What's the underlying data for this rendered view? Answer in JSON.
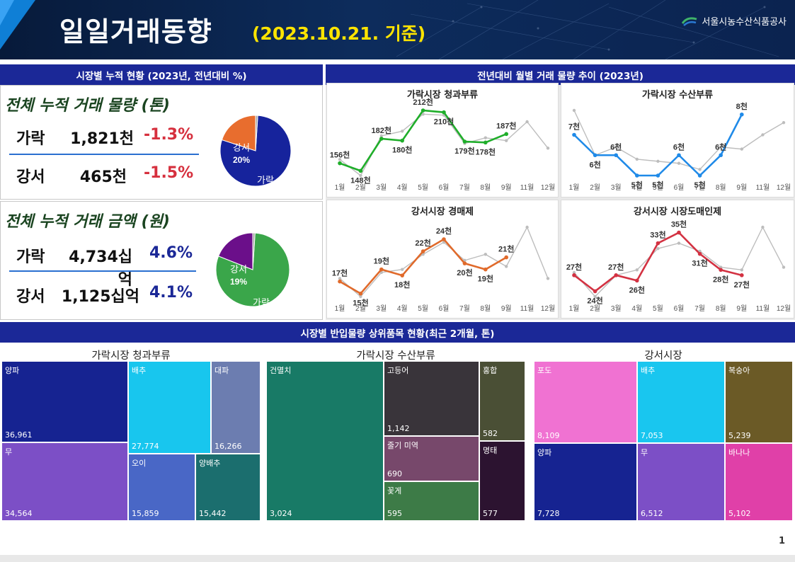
{
  "header": {
    "title": "일일거래동향",
    "date": "(2023.10.21. 기준)",
    "org": "서울시농수산식품공사"
  },
  "left": {
    "section_title": "시장별 누적 현황 (2023년, 전년대비 %)",
    "volume": {
      "title": "전체 누적 거래 물량 (톤)",
      "rows": [
        {
          "label": "가락",
          "value": "1,821천",
          "pct": "-1.3%"
        },
        {
          "label": "강서",
          "value": "465천",
          "pct": "-1.5%"
        }
      ],
      "pie": [
        {
          "label": "가락",
          "pct": "79%",
          "share": 79,
          "color": "#16239c"
        },
        {
          "label": "강서",
          "pct": "20%",
          "share": 20,
          "color": "#e86d2e"
        }
      ]
    },
    "amount": {
      "title": "전체 누적 거래 금액 (원)",
      "rows": [
        {
          "label": "가락",
          "value": "4,734십억",
          "pct": "4.6%"
        },
        {
          "label": "강서",
          "value": "1,125십억",
          "pct": "4.1%"
        }
      ],
      "pie": [
        {
          "label": "가락",
          "pct": "80%",
          "share": 80,
          "color": "#3aa64a"
        },
        {
          "label": "강서",
          "pct": "19%",
          "share": 19,
          "color": "#6b0f8a"
        }
      ]
    },
    "colors": {
      "negative": "#d6303e",
      "positive": "#1b2897"
    }
  },
  "right": {
    "section_title": "전년대비 월별 거래 물량 추이 (2023년)"
  },
  "chart_data": [
    {
      "type": "line",
      "title": "가락시장 청과부류",
      "categories": [
        "1월",
        "2월",
        "3월",
        "4월",
        "5월",
        "6월",
        "7월",
        "8월",
        "9월",
        "11월",
        "12월"
      ],
      "series": [
        {
          "color": "#1fae2a",
          "values": [
            156,
            148,
            182,
            180,
            212,
            210,
            179,
            178,
            187,
            null,
            null
          ],
          "labels": [
            "156천",
            "148천",
            "182천",
            "180천",
            "212천",
            "210천",
            "179천",
            "178천",
            "187천",
            "",
            ""
          ]
        },
        {
          "color": "#bdbdbd",
          "values": [
            160,
            143,
            185,
            190,
            208,
            207,
            177,
            183,
            180,
            200,
            172
          ]
        }
      ]
    },
    {
      "type": "line",
      "title": "가락시장 수산부류",
      "categories": [
        "1월",
        "2월",
        "3월",
        "4월",
        "5월",
        "6월",
        "7월",
        "8월",
        "9월",
        "11월",
        "12월"
      ],
      "series": [
        {
          "color": "#1f8ae8",
          "values": [
            7,
            6,
            6,
            5,
            5,
            6,
            5,
            6,
            8,
            null,
            null
          ],
          "labels": [
            "7천",
            "6천",
            "6천",
            "5천",
            "5천",
            "6천",
            "5천",
            "6천",
            "8천",
            "",
            ""
          ]
        },
        {
          "color": "#bdbdbd",
          "values": [
            8.2,
            6.0,
            6.4,
            5.8,
            5.7,
            5.6,
            5.3,
            6.4,
            6.3,
            7.0,
            7.6
          ]
        }
      ]
    },
    {
      "type": "line",
      "title": "강서시장 경매제",
      "categories": [
        "1월",
        "2월",
        "3월",
        "4월",
        "5월",
        "6월",
        "7월",
        "8월",
        "9월",
        "11월",
        "12월"
      ],
      "series": [
        {
          "color": "#e06a2b",
          "values": [
            17,
            15,
            19,
            18,
            22,
            24,
            20,
            19,
            21,
            null,
            null
          ],
          "labels": [
            "17천",
            "15천",
            "19천",
            "18천",
            "22천",
            "24천",
            "20천",
            "19천",
            "21천",
            "",
            ""
          ]
        },
        {
          "color": "#bdbdbd",
          "values": [
            17.5,
            14.5,
            18.5,
            19.0,
            21.5,
            23.5,
            20.5,
            21.5,
            19.5,
            26.0,
            17.5
          ]
        }
      ]
    },
    {
      "type": "line",
      "title": "강서시장 시장도매인제",
      "categories": [
        "1월",
        "2월",
        "3월",
        "4월",
        "5월",
        "6월",
        "7월",
        "8월",
        "9월",
        "11월",
        "12월"
      ],
      "series": [
        {
          "color": "#d33242",
          "values": [
            27,
            24,
            27,
            26,
            33,
            35,
            31,
            28,
            27,
            null,
            null
          ],
          "labels": [
            "27천",
            "24천",
            "27천",
            "26천",
            "33천",
            "35천",
            "31천",
            "28천",
            "27천",
            "",
            ""
          ]
        },
        {
          "color": "#bdbdbd",
          "values": [
            27.5,
            23.0,
            27.0,
            28.0,
            32.0,
            33.0,
            31.5,
            28.5,
            28.0,
            36.0,
            28.5
          ]
        }
      ]
    }
  ],
  "bottom": {
    "section_title": "시장별 반입물량 상위품목 현황(최근 2개월, 톤)",
    "treemaps": [
      {
        "title": "가락시장 청과부류",
        "tiles": [
          {
            "label": "양파",
            "value": "36,961",
            "color": "#162391"
          },
          {
            "label": "무",
            "value": "34,564",
            "color": "#7c4fc6"
          },
          {
            "label": "배추",
            "value": "27,774",
            "color": "#18c6ee"
          },
          {
            "label": "대파",
            "value": "16,266",
            "color": "#6c7db0"
          },
          {
            "label": "오이",
            "value": "15,859",
            "color": "#4967c6"
          },
          {
            "label": "양배추",
            "value": "15,442",
            "color": "#1b6e6e"
          }
        ]
      },
      {
        "title": "가락시장 수산부류",
        "tiles": [
          {
            "label": "건멸치",
            "value": "3,024",
            "color": "#187a66"
          },
          {
            "label": "고등어",
            "value": "1,142",
            "color": "#39343a"
          },
          {
            "label": "홍합",
            "value": "582",
            "color": "#4a4f35"
          },
          {
            "label": "줄기 미역",
            "value": "690",
            "color": "#77486b"
          },
          {
            "label": "명태",
            "value": "577",
            "color": "#2c1330"
          },
          {
            "label": "꽃게",
            "value": "595",
            "color": "#3d7b47"
          }
        ]
      },
      {
        "title": "강서시장",
        "tiles": [
          {
            "label": "포도",
            "value": "8,109",
            "color": "#f072d2"
          },
          {
            "label": "배추",
            "value": "7,053",
            "color": "#19c6ef"
          },
          {
            "label": "복숭아",
            "value": "5,239",
            "color": "#6b5a26"
          },
          {
            "label": "양파",
            "value": "7,728",
            "color": "#162391"
          },
          {
            "label": "무",
            "value": "6,512",
            "color": "#7c4fc6"
          },
          {
            "label": "바나나",
            "value": "5,102",
            "color": "#e040a8"
          }
        ]
      }
    ]
  },
  "page_number": "1"
}
